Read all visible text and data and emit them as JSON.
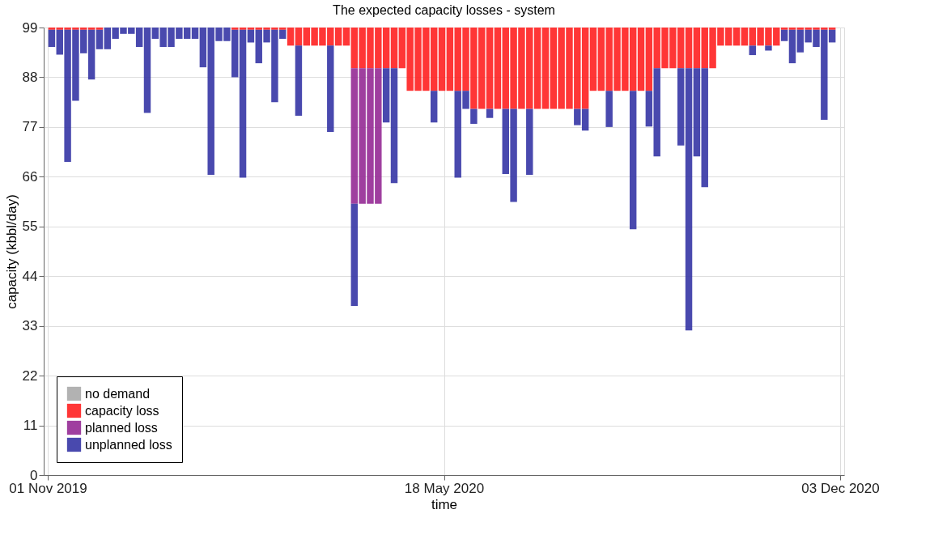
{
  "chart_data": {
    "type": "bar",
    "title": "The expected capacity losses - system",
    "xlabel": "time",
    "ylabel": "capacity (kbbl/day)",
    "x": [
      "2019-11-03",
      "2019-11-07",
      "2019-11-11",
      "2019-11-15",
      "2019-11-19",
      "2019-11-23",
      "2019-11-27",
      "2019-12-01",
      "2019-12-05",
      "2019-12-09",
      "2019-12-13",
      "2019-12-17",
      "2019-12-21",
      "2019-12-25",
      "2019-12-29",
      "2020-01-02",
      "2020-01-06",
      "2020-01-10",
      "2020-01-14",
      "2020-01-18",
      "2020-01-22",
      "2020-01-26",
      "2020-01-30",
      "2020-02-03",
      "2020-02-07",
      "2020-02-11",
      "2020-02-15",
      "2020-02-19",
      "2020-02-23",
      "2020-02-27",
      "2020-03-02",
      "2020-03-06",
      "2020-03-10",
      "2020-03-14",
      "2020-03-18",
      "2020-03-22",
      "2020-03-26",
      "2020-03-30",
      "2020-04-03",
      "2020-04-07",
      "2020-04-11",
      "2020-04-15",
      "2020-04-19",
      "2020-04-23",
      "2020-04-27",
      "2020-05-01",
      "2020-05-05",
      "2020-05-09",
      "2020-05-13",
      "2020-05-17",
      "2020-05-21",
      "2020-05-25",
      "2020-05-29",
      "2020-06-02",
      "2020-06-06",
      "2020-06-10",
      "2020-06-14",
      "2020-06-18",
      "2020-06-22",
      "2020-06-26",
      "2020-06-30",
      "2020-07-04",
      "2020-07-08",
      "2020-07-12",
      "2020-07-16",
      "2020-07-20",
      "2020-07-24",
      "2020-07-28",
      "2020-08-01",
      "2020-08-05",
      "2020-08-09",
      "2020-08-13",
      "2020-08-17",
      "2020-08-21",
      "2020-08-25",
      "2020-08-29",
      "2020-09-02",
      "2020-09-06",
      "2020-09-10",
      "2020-09-14",
      "2020-09-18",
      "2020-09-22",
      "2020-09-26",
      "2020-09-30",
      "2020-10-04",
      "2020-10-08",
      "2020-10-12",
      "2020-10-16",
      "2020-10-20",
      "2020-10-24",
      "2020-10-28",
      "2020-11-01",
      "2020-11-05",
      "2020-11-09",
      "2020-11-13",
      "2020-11-17",
      "2020-11-21",
      "2020-11-25",
      "2020-11-29"
    ],
    "series": [
      {
        "name": "no demand",
        "color": "#aaaaaa",
        "values": [
          null,
          null,
          null,
          null,
          null,
          null,
          null,
          null,
          null,
          null,
          null,
          null,
          null,
          null,
          null,
          null,
          null,
          null,
          null,
          null,
          null,
          null,
          null,
          null,
          null,
          null,
          null,
          null,
          null,
          null,
          null,
          null,
          null,
          null,
          null,
          null,
          null,
          null,
          null,
          null,
          null,
          null,
          null,
          null,
          null,
          null,
          null,
          null,
          null,
          null,
          null,
          null,
          null,
          null,
          null,
          null,
          null,
          null,
          null,
          null,
          null,
          null,
          null,
          null,
          null,
          null,
          null,
          null,
          null,
          null,
          null,
          null,
          null,
          null,
          null,
          null,
          null,
          null,
          null,
          null,
          null,
          null,
          null,
          null,
          null,
          null,
          null,
          null,
          null,
          null,
          null,
          null,
          null,
          null,
          null,
          null,
          null,
          null,
          null
        ]
      },
      {
        "name": "capacity loss",
        "color": "#ff2020",
        "base": [
          99,
          99,
          99,
          99,
          99,
          99,
          99,
          null,
          null,
          null,
          null,
          null,
          null,
          null,
          null,
          null,
          null,
          null,
          null,
          null,
          null,
          null,
          null,
          99,
          99,
          99,
          99,
          99,
          99,
          99,
          99,
          99,
          99,
          99,
          99,
          99,
          99,
          99,
          99,
          99,
          99,
          99,
          99,
          99,
          99,
          99,
          99,
          99,
          99,
          99,
          99,
          99,
          99,
          99,
          99,
          99,
          99,
          99,
          99,
          99,
          99,
          99,
          99,
          99,
          99,
          99,
          99,
          99,
          99,
          99,
          99,
          99,
          99,
          99,
          99,
          99,
          99,
          99,
          99,
          99,
          99,
          99,
          99,
          99,
          99,
          99,
          99,
          99,
          99,
          99,
          99,
          99,
          99,
          99,
          99,
          99,
          99,
          99,
          99
        ],
        "values": [
          -0.5,
          -0.5,
          -0.5,
          -0.5,
          -0.5,
          -0.5,
          -0.5,
          null,
          null,
          null,
          null,
          null,
          null,
          null,
          null,
          null,
          null,
          null,
          null,
          null,
          null,
          null,
          null,
          -0.5,
          -0.5,
          -0.5,
          -0.5,
          -0.5,
          -0.5,
          -0.5,
          -4,
          -4,
          -4,
          -4,
          -4,
          -4,
          -4,
          -4,
          -9,
          -9,
          -9,
          -9,
          -9,
          -9,
          -9,
          -14,
          -14,
          -14,
          -14,
          -14,
          -14,
          -14,
          -14,
          -18,
          -18,
          -18,
          -18,
          -18,
          -18,
          -18,
          -18,
          -18,
          -18,
          -18,
          -18,
          -18,
          -18,
          -18,
          -14,
          -14,
          -14,
          -14,
          -14,
          -14,
          -14,
          -14,
          -9,
          -9,
          -9,
          -9,
          -9,
          -9,
          -9,
          -9,
          -4,
          -4,
          -4,
          -4,
          -4,
          -4,
          -4,
          -4,
          -0.5,
          -0.5,
          -0.5,
          -0.5,
          -0.5,
          -0.5,
          -0.5
        ]
      },
      {
        "name": "planned loss",
        "color": "#952a95",
        "base": [
          null,
          null,
          null,
          null,
          null,
          null,
          null,
          null,
          null,
          null,
          null,
          null,
          null,
          null,
          null,
          null,
          null,
          null,
          null,
          null,
          null,
          null,
          null,
          null,
          null,
          null,
          null,
          null,
          null,
          null,
          null,
          null,
          null,
          null,
          null,
          null,
          null,
          null,
          90,
          90,
          90,
          90,
          null,
          null,
          null,
          null,
          null,
          null,
          null,
          null,
          null,
          null,
          null,
          null,
          null,
          null,
          null,
          null,
          null,
          null,
          null,
          null,
          null,
          null,
          null,
          null,
          null,
          null,
          null,
          null,
          null,
          null,
          null,
          null,
          null,
          null,
          null,
          null,
          null,
          null,
          null,
          null,
          null,
          null,
          null,
          null,
          null,
          null,
          null,
          null,
          null,
          null,
          null,
          null,
          null,
          null,
          null,
          null,
          null
        ],
        "values": [
          null,
          null,
          null,
          null,
          null,
          null,
          null,
          null,
          null,
          null,
          null,
          null,
          null,
          null,
          null,
          null,
          null,
          null,
          null,
          null,
          null,
          null,
          null,
          null,
          null,
          null,
          null,
          null,
          null,
          null,
          null,
          null,
          null,
          null,
          null,
          null,
          null,
          null,
          -30,
          -30,
          -30,
          -30,
          null,
          null,
          null,
          null,
          null,
          null,
          null,
          null,
          null,
          null,
          null,
          null,
          null,
          null,
          null,
          null,
          null,
          null,
          null,
          null,
          null,
          null,
          null,
          null,
          null,
          null,
          null,
          null,
          null,
          null,
          null,
          null,
          null,
          null,
          null,
          null,
          null,
          null,
          null,
          null,
          null,
          null,
          null,
          null,
          null,
          null,
          null,
          null,
          null,
          null,
          null,
          null,
          null,
          null,
          null,
          null,
          null
        ]
      },
      {
        "name": "unplanned loss",
        "color": "#3535a5",
        "base": [
          98.5,
          98.5,
          98.5,
          98.5,
          98.5,
          98.5,
          98.5,
          99,
          99,
          99,
          99,
          99,
          99,
          99,
          99,
          99,
          99,
          99,
          99,
          99,
          99,
          99,
          99,
          98.5,
          98.5,
          98.5,
          98.5,
          98.5,
          98.5,
          98.5,
          null,
          95,
          null,
          null,
          null,
          95,
          null,
          null,
          60,
          null,
          null,
          null,
          90,
          90,
          null,
          null,
          null,
          null,
          85,
          null,
          null,
          85,
          85,
          81,
          null,
          81,
          null,
          81,
          81,
          null,
          81,
          null,
          null,
          null,
          null,
          null,
          81,
          81,
          null,
          null,
          85,
          null,
          null,
          85,
          null,
          85,
          90,
          null,
          null,
          90,
          90,
          90,
          90,
          null,
          null,
          null,
          null,
          null,
          95,
          null,
          95,
          null,
          98.5,
          98.5,
          98.5,
          98.5,
          98.5,
          98.5,
          98.5
        ],
        "values": [
          -3.8,
          -5.5,
          -29.2,
          -15.7,
          -5.2,
          -11,
          -4.3,
          -4.8,
          -2.5,
          -1.4,
          -1.4,
          -4.3,
          -18.9,
          -2.5,
          -4.3,
          -4.3,
          -2.5,
          -2.5,
          -2.5,
          -8.8,
          -32.6,
          -3,
          -3,
          -10.5,
          -32.7,
          -2.8,
          -7.4,
          -2.8,
          -16,
          -2,
          null,
          -15.5,
          null,
          null,
          null,
          -19.1,
          null,
          null,
          -22.6,
          null,
          null,
          null,
          -12,
          -25.4,
          null,
          null,
          null,
          null,
          -7,
          null,
          null,
          -19.2,
          -4,
          -3.3,
          null,
          -2,
          null,
          -14.4,
          -20.6,
          null,
          -14.6,
          null,
          null,
          null,
          null,
          null,
          -3.6,
          -4.8,
          null,
          null,
          -8,
          null,
          null,
          -30.6,
          null,
          -7.9,
          -19.5,
          null,
          null,
          -17.1,
          -58,
          -19.5,
          -26.3,
          null,
          null,
          null,
          null,
          null,
          -2.1,
          null,
          -1.1,
          null,
          -2.5,
          -7.4,
          -5,
          -2.8,
          -3.8,
          -19.9,
          -2.8
        ]
      }
    ],
    "xlim": [
      "2019-11-01",
      "2020-12-03"
    ],
    "xticks": [
      {
        "value": "2019-11-01",
        "label": "01 Nov 2019"
      },
      {
        "value": "2020-05-18",
        "label": "18 May 2020"
      },
      {
        "value": "2020-12-03",
        "label": "03 Dec 2020"
      }
    ],
    "ylim": [
      0,
      99
    ],
    "yticks": [
      0,
      11,
      22,
      33,
      44,
      55,
      66,
      77,
      88,
      99
    ],
    "grid": true,
    "legend": "bottom left"
  }
}
